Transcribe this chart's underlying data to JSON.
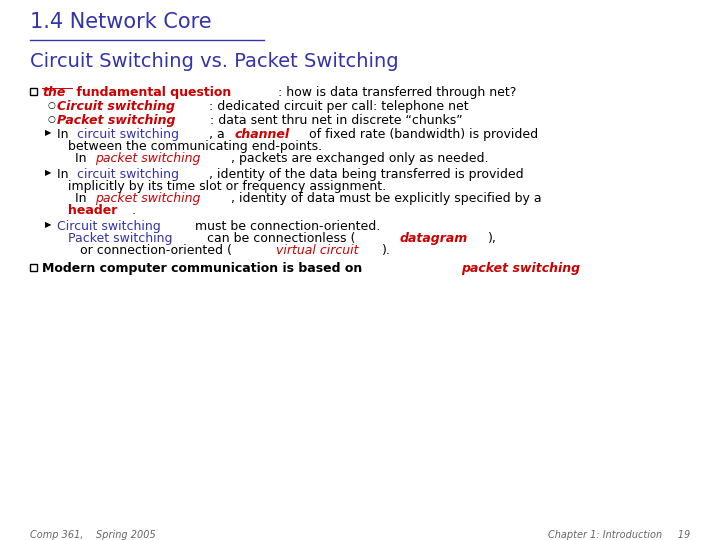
{
  "bg_color": "#ffffff",
  "title": "1.4 Network Core",
  "subtitle": "Circuit Switching vs. Packet Switching",
  "title_color": "#3333aa",
  "subtitle_color": "#3333aa",
  "blue": "#3333aa",
  "red": "#cc0000",
  "black": "#000000",
  "gray": "#666666",
  "footer_left": "Comp 361,    Spring 2005",
  "footer_right": "Chapter 1: Introduction     19",
  "footer_color": "#666666"
}
